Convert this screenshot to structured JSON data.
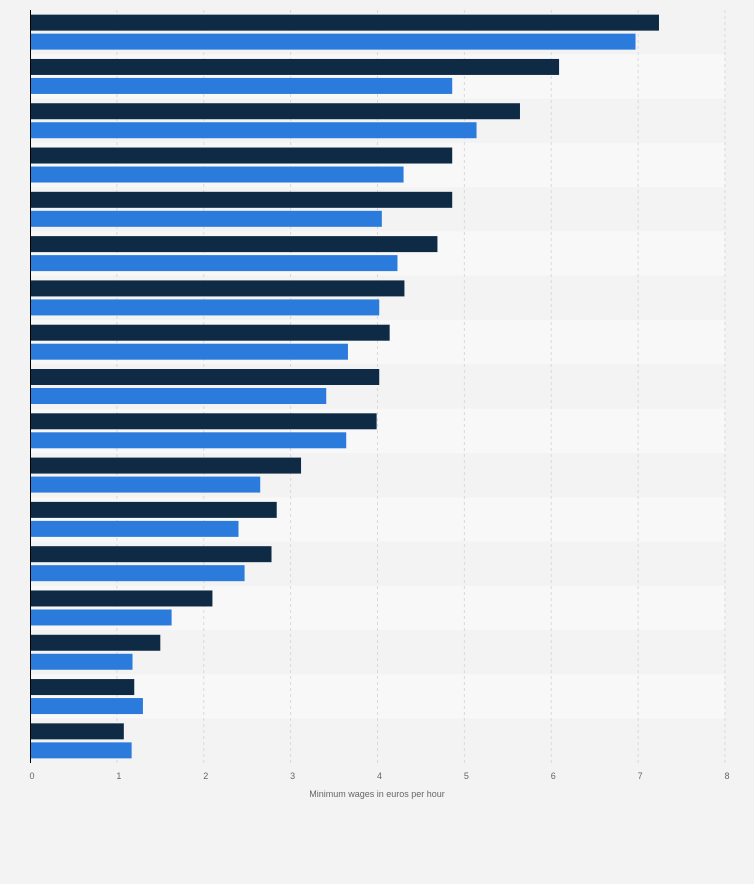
{
  "chart_data": {
    "type": "bar",
    "orientation": "horizontal",
    "title": "",
    "xlabel": "Minimum wages in euros per hour",
    "ylabel": "",
    "xlim": [
      0,
      8
    ],
    "x_ticks": [
      "0",
      "1",
      "2",
      "3",
      "4",
      "5",
      "6",
      "7",
      "8"
    ],
    "grid": true,
    "legend": "none",
    "category_labels_visible": false,
    "series": [
      {
        "color": "#0f2a45",
        "values": [
          7.24,
          6.09,
          5.64,
          4.86,
          4.86,
          4.69,
          4.31,
          4.14,
          4.02,
          3.99,
          3.12,
          2.84,
          2.78,
          2.1,
          1.5,
          1.2,
          1.08
        ]
      },
      {
        "color": "#2b7bdc",
        "values": [
          6.97,
          4.86,
          5.14,
          4.3,
          4.05,
          4.23,
          4.02,
          3.66,
          3.41,
          3.64,
          2.65,
          2.4,
          2.47,
          1.63,
          1.18,
          1.3,
          1.17
        ]
      }
    ]
  },
  "colors": {
    "band_even": "#f3f3f4",
    "band_odd": "#f8f8f8",
    "grid": "#d9d9d9",
    "axis": "#000000",
    "tick_text": "#666666"
  }
}
